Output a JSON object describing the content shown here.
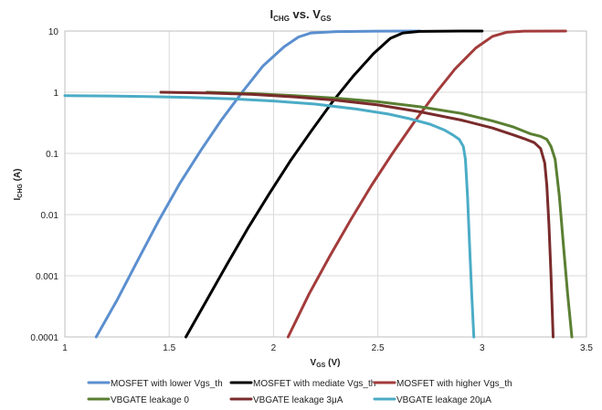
{
  "chart_data": {
    "type": "line",
    "title": {
      "main": "I",
      "main_sub": "CHG",
      "rest": " vs. V",
      "rest_sub": "GS"
    },
    "xlabel": {
      "main": "V",
      "sub": "GS",
      "rest": " (V)"
    },
    "ylabel": {
      "main": "I",
      "sub": "CHG",
      "rest": " (A)"
    },
    "xlim": [
      1,
      3.5
    ],
    "ylim": [
      0.0001,
      10
    ],
    "yscale": "log",
    "grid": true,
    "legend_position": "bottom",
    "x_ticks": [
      "1",
      "1.5",
      "2",
      "2.5",
      "3",
      "3.5"
    ],
    "y_ticks": [
      "10",
      "1",
      "0.1",
      "0.01",
      "0.001",
      "0.0001"
    ],
    "series": [
      {
        "name": "MOSFET with lower Vgs_th",
        "color": "#5b8fcf",
        "points": [
          [
            1.15,
            0.0001
          ],
          [
            1.25,
            0.0004
          ],
          [
            1.35,
            0.0018
          ],
          [
            1.45,
            0.008
          ],
          [
            1.55,
            0.032
          ],
          [
            1.65,
            0.11
          ],
          [
            1.75,
            0.35
          ],
          [
            1.85,
            1.0
          ],
          [
            1.95,
            2.7
          ],
          [
            2.05,
            5.5
          ],
          [
            2.12,
            8.0
          ],
          [
            2.18,
            9.3
          ],
          [
            2.3,
            9.8
          ],
          [
            2.5,
            9.95
          ],
          [
            2.7,
            10.0
          ]
        ]
      },
      {
        "name": "MOSFET with mediate Vgs_th",
        "color": "#000000",
        "points": [
          [
            1.58,
            0.0001
          ],
          [
            1.68,
            0.0004
          ],
          [
            1.78,
            0.0016
          ],
          [
            1.88,
            0.0062
          ],
          [
            1.98,
            0.022
          ],
          [
            2.08,
            0.075
          ],
          [
            2.18,
            0.23
          ],
          [
            2.28,
            0.68
          ],
          [
            2.38,
            1.8
          ],
          [
            2.48,
            4.3
          ],
          [
            2.56,
            7.6
          ],
          [
            2.62,
            9.3
          ],
          [
            2.7,
            9.85
          ],
          [
            2.9,
            10.0
          ],
          [
            3.0,
            10.0
          ]
        ]
      },
      {
        "name": "MOSFET with higher Vgs_th",
        "color": "#a33b3b",
        "points": [
          [
            2.07,
            0.0001
          ],
          [
            2.17,
            0.0005
          ],
          [
            2.27,
            0.0021
          ],
          [
            2.37,
            0.0082
          ],
          [
            2.47,
            0.03
          ],
          [
            2.57,
            0.1
          ],
          [
            2.67,
            0.31
          ],
          [
            2.77,
            0.9
          ],
          [
            2.87,
            2.4
          ],
          [
            2.97,
            5.3
          ],
          [
            3.05,
            8.2
          ],
          [
            3.12,
            9.6
          ],
          [
            3.2,
            9.95
          ],
          [
            3.4,
            10.0
          ]
        ]
      },
      {
        "name": "VBGATE leakage 0",
        "color": "#5a7f32",
        "points": [
          [
            1.68,
            1.0
          ],
          [
            1.9,
            0.95
          ],
          [
            2.1,
            0.88
          ],
          [
            2.3,
            0.8
          ],
          [
            2.5,
            0.7
          ],
          [
            2.7,
            0.58
          ],
          [
            2.9,
            0.45
          ],
          [
            3.05,
            0.34
          ],
          [
            3.15,
            0.27
          ],
          [
            3.23,
            0.21
          ],
          [
            3.28,
            0.19
          ],
          [
            3.31,
            0.17
          ],
          [
            3.33,
            0.13
          ],
          [
            3.35,
            0.08
          ],
          [
            3.37,
            0.02
          ],
          [
            3.39,
            0.003
          ],
          [
            3.41,
            0.0005
          ],
          [
            3.43,
            0.0001
          ]
        ]
      },
      {
        "name": "VBGATE leakage 3μA",
        "color": "#7a2b2b",
        "points": [
          [
            1.46,
            1.0
          ],
          [
            1.7,
            0.97
          ],
          [
            1.9,
            0.92
          ],
          [
            2.1,
            0.84
          ],
          [
            2.3,
            0.74
          ],
          [
            2.5,
            0.62
          ],
          [
            2.7,
            0.48
          ],
          [
            2.9,
            0.35
          ],
          [
            3.05,
            0.26
          ],
          [
            3.15,
            0.2
          ],
          [
            3.21,
            0.17
          ],
          [
            3.25,
            0.15
          ],
          [
            3.28,
            0.12
          ],
          [
            3.3,
            0.07
          ],
          [
            3.31,
            0.03
          ],
          [
            3.32,
            0.007
          ],
          [
            3.33,
            0.001
          ],
          [
            3.34,
            0.0001
          ]
        ]
      },
      {
        "name": "VBGATE leakage 20μA",
        "color": "#4bacc6",
        "points": [
          [
            1.0,
            0.88
          ],
          [
            1.2,
            0.87
          ],
          [
            1.4,
            0.85
          ],
          [
            1.6,
            0.82
          ],
          [
            1.8,
            0.78
          ],
          [
            2.0,
            0.72
          ],
          [
            2.2,
            0.64
          ],
          [
            2.4,
            0.53
          ],
          [
            2.55,
            0.44
          ],
          [
            2.65,
            0.37
          ],
          [
            2.75,
            0.3
          ],
          [
            2.82,
            0.24
          ],
          [
            2.86,
            0.2
          ],
          [
            2.89,
            0.17
          ],
          [
            2.91,
            0.13
          ],
          [
            2.92,
            0.08
          ],
          [
            2.93,
            0.02
          ],
          [
            2.94,
            0.003
          ],
          [
            2.95,
            0.0005
          ],
          [
            2.96,
            0.0001
          ]
        ]
      }
    ]
  }
}
